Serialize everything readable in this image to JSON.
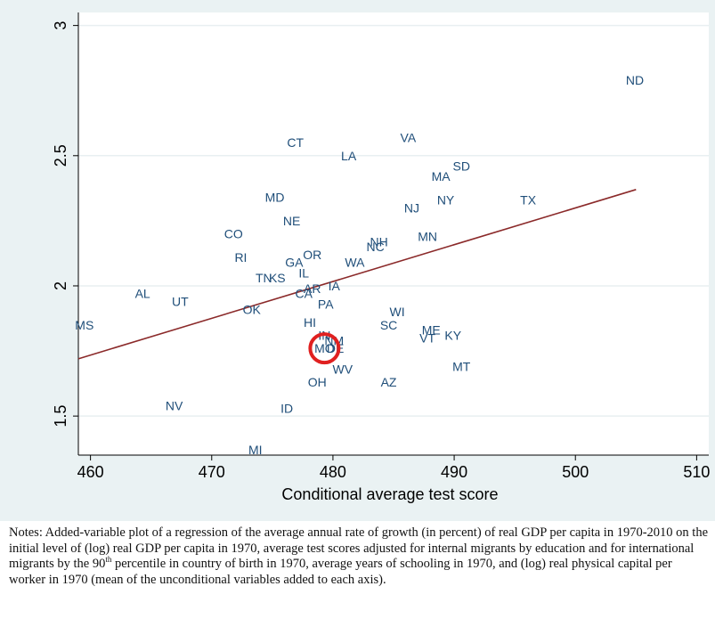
{
  "chart_data": {
    "type": "scatter",
    "xlabel": "Conditional average test score",
    "ylabel": "",
    "xlim": [
      459,
      511
    ],
    "ylim": [
      1.35,
      3.05
    ],
    "xticks": [
      460,
      470,
      480,
      490,
      500,
      510
    ],
    "yticks": [
      1.5,
      2,
      2.5,
      3
    ],
    "xtick_labels": [
      "460",
      "470",
      "480",
      "490",
      "500",
      "510"
    ],
    "ytick_labels": [
      "1.5",
      "2",
      "2.5",
      "3"
    ],
    "grid": "horizontal",
    "points": [
      {
        "label": "MS",
        "x": 459.5,
        "y": 1.85
      },
      {
        "label": "AL",
        "x": 464.3,
        "y": 1.97
      },
      {
        "label": "UT",
        "x": 467.4,
        "y": 1.94
      },
      {
        "label": "NV",
        "x": 466.9,
        "y": 1.54
      },
      {
        "label": "CO",
        "x": 471.8,
        "y": 2.2
      },
      {
        "label": "RI",
        "x": 472.4,
        "y": 2.11
      },
      {
        "label": "OK",
        "x": 473.3,
        "y": 1.91
      },
      {
        "label": "MI",
        "x": 473.6,
        "y": 1.37
      },
      {
        "label": "MD",
        "x": 475.2,
        "y": 2.34
      },
      {
        "label": "TN",
        "x": 474.3,
        "y": 2.03
      },
      {
        "label": "KS",
        "x": 475.4,
        "y": 2.03
      },
      {
        "label": "NE",
        "x": 476.6,
        "y": 2.25
      },
      {
        "label": "ID",
        "x": 476.2,
        "y": 1.53
      },
      {
        "label": "CT",
        "x": 476.9,
        "y": 2.55
      },
      {
        "label": "GA",
        "x": 476.8,
        "y": 2.09
      },
      {
        "label": "IL",
        "x": 477.6,
        "y": 2.05
      },
      {
        "label": "OR",
        "x": 478.3,
        "y": 2.12
      },
      {
        "label": "CA",
        "x": 477.6,
        "y": 1.97
      },
      {
        "label": "AR",
        "x": 478.3,
        "y": 1.99
      },
      {
        "label": "HI",
        "x": 478.1,
        "y": 1.86
      },
      {
        "label": "PA",
        "x": 479.4,
        "y": 1.93
      },
      {
        "label": "IA",
        "x": 480.1,
        "y": 2.0
      },
      {
        "label": "OH",
        "x": 478.7,
        "y": 1.63
      },
      {
        "label": "IN",
        "x": 479.3,
        "y": 1.81
      },
      {
        "label": "MO",
        "x": 479.3,
        "y": 1.76
      },
      {
        "label": "NM",
        "x": 480.1,
        "y": 1.79
      },
      {
        "label": "DE",
        "x": 480.2,
        "y": 1.76
      },
      {
        "label": "WV",
        "x": 480.8,
        "y": 1.68
      },
      {
        "label": "LA",
        "x": 481.3,
        "y": 2.5
      },
      {
        "label": "WA",
        "x": 481.8,
        "y": 2.09
      },
      {
        "label": "NC",
        "x": 483.5,
        "y": 2.15
      },
      {
        "label": "NH",
        "x": 483.8,
        "y": 2.17
      },
      {
        "label": "AZ",
        "x": 484.6,
        "y": 1.63
      },
      {
        "label": "SC",
        "x": 484.6,
        "y": 1.85
      },
      {
        "label": "WI",
        "x": 485.3,
        "y": 1.9
      },
      {
        "label": "VA",
        "x": 486.2,
        "y": 2.57
      },
      {
        "label": "NJ",
        "x": 486.5,
        "y": 2.3
      },
      {
        "label": "MN",
        "x": 487.8,
        "y": 2.19
      },
      {
        "label": "ME",
        "x": 488.1,
        "y": 1.83
      },
      {
        "label": "VT",
        "x": 487.8,
        "y": 1.8
      },
      {
        "label": "KY",
        "x": 489.9,
        "y": 1.81
      },
      {
        "label": "MA",
        "x": 488.9,
        "y": 2.42
      },
      {
        "label": "NY",
        "x": 489.3,
        "y": 2.33
      },
      {
        "label": "SD",
        "x": 490.6,
        "y": 2.46
      },
      {
        "label": "MT",
        "x": 490.6,
        "y": 1.69
      },
      {
        "label": "TX",
        "x": 496.1,
        "y": 2.33
      },
      {
        "label": "ND",
        "x": 504.9,
        "y": 2.79
      }
    ],
    "fit_line": {
      "x": [
        459,
        505
      ],
      "y": [
        1.72,
        2.37
      ],
      "color": "#8b2a2a"
    },
    "highlight": {
      "x": 479.3,
      "y": 1.76,
      "color": "#e02020"
    },
    "colors": {
      "background": "#eaf2f3",
      "plot_bg": "#ffffff",
      "label": "#1f4e79",
      "axis": "#000000",
      "grid": "#e8eff1"
    }
  },
  "notes": {
    "part1": "Notes: Added-variable plot of a regression of the average annual rate of growth (in percent) of real GDP per capita in 1970-2010 on the initial level of (log) real GDP per capita in 1970, average test scores adjusted for internal migrants by education and for international migrants by the 90",
    "sup": "th",
    "part2": " percentile in country of birth in 1970, average years of schooling in 1970, and (log) real physical capital per worker in 1970 (mean of the unconditional variables added to each axis)."
  }
}
